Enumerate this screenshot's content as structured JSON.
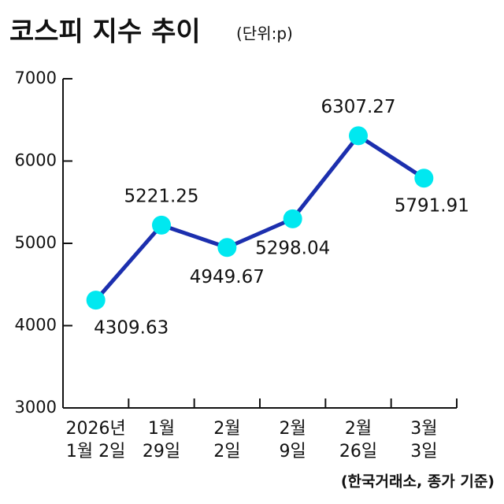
{
  "chart_data": {
    "type": "line",
    "title": "코스피 지수 추이",
    "subtitle": "(단위:p)",
    "source": "(한국거래소, 종가 기준)",
    "categories": [
      [
        "2026년",
        "1월 2일"
      ],
      [
        "1월",
        "29일"
      ],
      [
        "2월",
        "2일"
      ],
      [
        "2월",
        "9일"
      ],
      [
        "2월",
        "26일"
      ],
      [
        "3월",
        "3일"
      ]
    ],
    "series": [
      {
        "name": "코스피",
        "color": "#1c2fae",
        "marker_color": "#00e8f0",
        "values": [
          4309.63,
          5221.25,
          4949.67,
          5298.04,
          6307.27,
          5791.91
        ]
      }
    ],
    "ylim": [
      3000,
      7000
    ],
    "yticks": [
      3000,
      4000,
      5000,
      6000,
      7000
    ],
    "grid": false
  }
}
